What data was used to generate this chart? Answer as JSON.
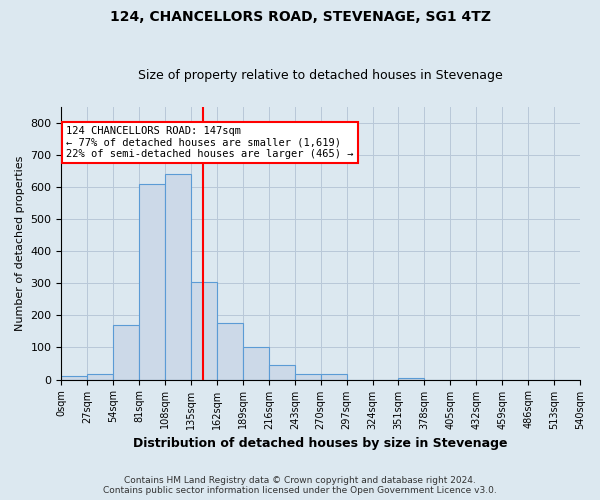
{
  "title": "124, CHANCELLORS ROAD, STEVENAGE, SG1 4TZ",
  "subtitle": "Size of property relative to detached houses in Stevenage",
  "xlabel": "Distribution of detached houses by size in Stevenage",
  "ylabel": "Number of detached properties",
  "footer_line1": "Contains HM Land Registry data © Crown copyright and database right 2024.",
  "footer_line2": "Contains public sector information licensed under the Open Government Licence v3.0.",
  "property_size": 147,
  "annotation_line1": "124 CHANCELLORS ROAD: 147sqm",
  "annotation_line2": "← 77% of detached houses are smaller (1,619)",
  "annotation_line3": "22% of semi-detached houses are larger (465) →",
  "bin_edges": [
    0,
    27,
    54,
    81,
    108,
    135,
    162,
    189,
    216,
    243,
    270,
    297,
    324,
    351,
    378,
    405,
    432,
    459,
    486,
    513,
    540
  ],
  "bin_counts": [
    10,
    18,
    170,
    610,
    640,
    305,
    175,
    100,
    45,
    18,
    18,
    0,
    0,
    5,
    0,
    0,
    0,
    0,
    0,
    0
  ],
  "bar_facecolor": "#ccd9e8",
  "bar_edgecolor": "#5b9bd5",
  "vline_color": "red",
  "vline_x": 147,
  "annotation_box_color": "red",
  "grid_color": "#b8c8d8",
  "background_color": "#dce8f0",
  "ylim": [
    0,
    850
  ],
  "yticks": [
    0,
    100,
    200,
    300,
    400,
    500,
    600,
    700,
    800
  ],
  "title_fontsize": 10,
  "subtitle_fontsize": 9
}
